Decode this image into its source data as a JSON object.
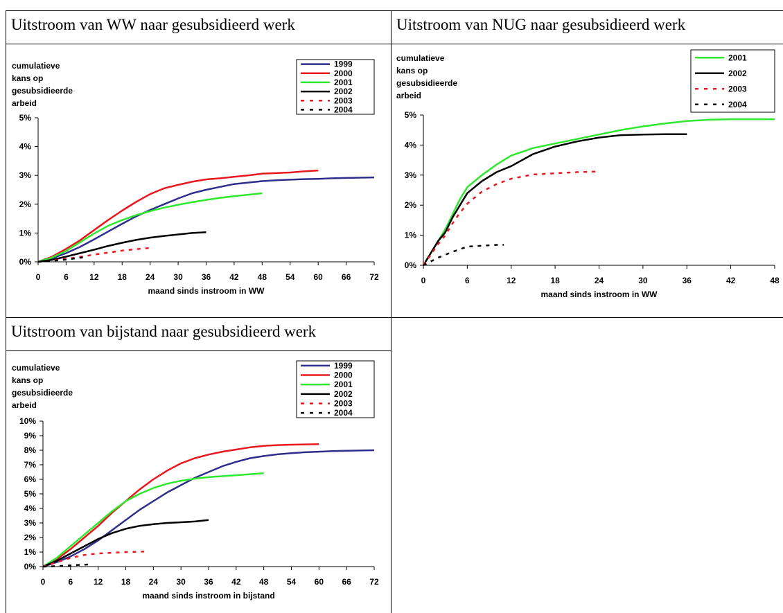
{
  "panels": [
    {
      "title": "Uitstroom van WW naar gesubsidieerd werk",
      "chart_data": {
        "type": "line",
        "ylabel_lines": [
          "cumulatieve",
          "kans op",
          "gesubsidieerde",
          "arbeid"
        ],
        "xlabel": "maand sinds instroom in WW",
        "xlim": [
          0,
          72
        ],
        "ylim": [
          0,
          5
        ],
        "xticks": [
          0,
          6,
          12,
          18,
          24,
          30,
          36,
          42,
          48,
          54,
          60,
          66,
          72
        ],
        "yticks": [
          0,
          1,
          2,
          3,
          4,
          5
        ],
        "ytick_labels": [
          "0%",
          "1%",
          "2%",
          "3%",
          "4%",
          "5%"
        ],
        "grid": false,
        "legend": "top-right",
        "series": [
          {
            "name": "1999",
            "color": "#2e2e8c",
            "dash": "solid",
            "x": [
              0,
              3,
              6,
              9,
              12,
              15,
              18,
              21,
              24,
              27,
              30,
              33,
              36,
              39,
              42,
              45,
              48,
              51,
              54,
              57,
              60,
              63,
              66,
              69,
              72
            ],
            "y": [
              0,
              0.12,
              0.3,
              0.52,
              0.78,
              1.05,
              1.32,
              1.58,
              1.8,
              2.0,
              2.2,
              2.38,
              2.5,
              2.6,
              2.7,
              2.75,
              2.8,
              2.83,
              2.85,
              2.87,
              2.88,
              2.9,
              2.91,
              2.92,
              2.93
            ]
          },
          {
            "name": "2000",
            "color": "#e8181e",
            "dash": "solid",
            "x": [
              0,
              3,
              6,
              9,
              12,
              15,
              18,
              21,
              24,
              27,
              30,
              33,
              36,
              39,
              42,
              45,
              48,
              51,
              54,
              57,
              60
            ],
            "y": [
              0,
              0.18,
              0.45,
              0.75,
              1.1,
              1.45,
              1.78,
              2.08,
              2.35,
              2.55,
              2.67,
              2.78,
              2.86,
              2.9,
              2.95,
              3.0,
              3.06,
              3.08,
              3.1,
              3.14,
              3.17
            ]
          },
          {
            "name": "2001",
            "color": "#2ee82e",
            "dash": "solid",
            "x": [
              0,
              3,
              6,
              9,
              12,
              15,
              18,
              21,
              24,
              27,
              30,
              33,
              36,
              39,
              42,
              45,
              48
            ],
            "y": [
              0,
              0.15,
              0.38,
              0.68,
              0.98,
              1.25,
              1.45,
              1.62,
              1.76,
              1.88,
              1.98,
              2.07,
              2.15,
              2.22,
              2.28,
              2.33,
              2.38
            ]
          },
          {
            "name": "2002",
            "color": "#000000",
            "dash": "solid",
            "x": [
              0,
              3,
              6,
              9,
              12,
              15,
              18,
              21,
              24,
              27,
              30,
              33,
              36
            ],
            "y": [
              0,
              0.07,
              0.18,
              0.3,
              0.42,
              0.55,
              0.66,
              0.76,
              0.84,
              0.9,
              0.95,
              1.0,
              1.03
            ]
          },
          {
            "name": "2003",
            "color": "#e8181e",
            "dash": "dashed",
            "x": [
              0,
              3,
              6,
              9,
              12,
              15,
              18,
              21,
              24
            ],
            "y": [
              0,
              0.04,
              0.1,
              0.17,
              0.25,
              0.32,
              0.39,
              0.44,
              0.48
            ]
          },
          {
            "name": "2004",
            "color": "#000000",
            "dash": "dashed",
            "x": [
              0,
              2,
              4,
              6,
              8,
              10
            ],
            "y": [
              0,
              0.02,
              0.05,
              0.08,
              0.12,
              0.16
            ]
          }
        ]
      }
    },
    {
      "title": "Uitstroom van NUG naar gesubsidieerd werk",
      "chart_data": {
        "type": "line",
        "ylabel_lines": [
          "cumulatieve",
          "kans op",
          "gesubsidieerde",
          "arbeid"
        ],
        "xlabel": "maand sinds instroom in WW",
        "xlim": [
          0,
          48
        ],
        "ylim": [
          0,
          5
        ],
        "xticks": [
          0,
          6,
          12,
          18,
          24,
          30,
          36,
          42,
          48
        ],
        "yticks": [
          0,
          1,
          2,
          3,
          4,
          5
        ],
        "ytick_labels": [
          "0%",
          "1%",
          "2%",
          "3%",
          "4%",
          "5%"
        ],
        "grid": false,
        "legend": "top-right",
        "series": [
          {
            "name": "2001",
            "color": "#2ee82e",
            "dash": "solid",
            "x": [
              0,
              1,
              2,
              3,
              4,
              5,
              6,
              8,
              10,
              12,
              15,
              18,
              21,
              24,
              27,
              30,
              33,
              36,
              39,
              42,
              45,
              48
            ],
            "y": [
              0,
              0.4,
              0.8,
              1.2,
              1.7,
              2.2,
              2.6,
              3.0,
              3.35,
              3.65,
              3.9,
              4.05,
              4.2,
              4.35,
              4.5,
              4.62,
              4.72,
              4.8,
              4.84,
              4.86,
              4.86,
              4.86
            ]
          },
          {
            "name": "2002",
            "color": "#000000",
            "dash": "solid",
            "x": [
              0,
              1,
              2,
              3,
              4,
              5,
              6,
              8,
              10,
              12,
              15,
              18,
              21,
              24,
              27,
              30,
              33,
              36
            ],
            "y": [
              0,
              0.4,
              0.8,
              1.1,
              1.6,
              2.0,
              2.4,
              2.8,
              3.1,
              3.3,
              3.7,
              3.95,
              4.12,
              4.25,
              4.33,
              4.35,
              4.36,
              4.36
            ]
          },
          {
            "name": "2003",
            "color": "#e8181e",
            "dash": "dashed",
            "x": [
              0,
              1,
              2,
              3,
              4,
              5,
              6,
              8,
              10,
              12,
              15,
              18,
              21,
              24
            ],
            "y": [
              0,
              0.35,
              0.7,
              1.0,
              1.4,
              1.75,
              2.05,
              2.45,
              2.7,
              2.88,
              3.02,
              3.06,
              3.1,
              3.12
            ]
          },
          {
            "name": "2004",
            "color": "#000000",
            "dash": "dashed",
            "x": [
              0,
              2,
              4,
              6,
              8,
              10,
              11
            ],
            "y": [
              0,
              0.25,
              0.45,
              0.62,
              0.65,
              0.68,
              0.68
            ]
          }
        ]
      }
    },
    {
      "title": "Uitstroom van bijstand naar gesubsidieerd werk",
      "chart_data": {
        "type": "line",
        "ylabel_lines": [
          "cumulatieve",
          "kans op",
          "gesubsidieerde",
          "arbeid"
        ],
        "xlabel": "maand sinds instroom in bijstand",
        "xlim": [
          0,
          72
        ],
        "ylim": [
          0,
          10
        ],
        "xticks": [
          0,
          6,
          12,
          18,
          24,
          30,
          36,
          42,
          48,
          54,
          60,
          66,
          72
        ],
        "yticks": [
          0,
          1,
          2,
          3,
          4,
          5,
          6,
          7,
          8,
          9,
          10
        ],
        "ytick_labels": [
          "0%",
          "1%",
          "2%",
          "3%",
          "4%",
          "5%",
          "6%",
          "7%",
          "8%",
          "9%",
          "10%"
        ],
        "grid": false,
        "legend": "top-right",
        "series": [
          {
            "name": "1999",
            "color": "#2e2e8c",
            "dash": "solid",
            "x": [
              0,
              3,
              6,
              9,
              12,
              15,
              18,
              21,
              24,
              27,
              30,
              33,
              36,
              39,
              42,
              45,
              48,
              51,
              54,
              57,
              60,
              63,
              66,
              69,
              72
            ],
            "y": [
              0,
              0.3,
              0.7,
              1.2,
              1.8,
              2.5,
              3.2,
              3.9,
              4.5,
              5.1,
              5.6,
              6.1,
              6.5,
              6.9,
              7.2,
              7.45,
              7.6,
              7.72,
              7.8,
              7.86,
              7.9,
              7.94,
              7.96,
              7.98,
              8.0
            ]
          },
          {
            "name": "2000",
            "color": "#e8181e",
            "dash": "solid",
            "x": [
              0,
              3,
              6,
              9,
              12,
              15,
              18,
              21,
              24,
              27,
              30,
              33,
              36,
              39,
              42,
              45,
              48,
              51,
              54,
              57,
              60
            ],
            "y": [
              0,
              0.5,
              1.2,
              2.0,
              2.8,
              3.7,
              4.5,
              5.3,
              6.0,
              6.6,
              7.1,
              7.45,
              7.7,
              7.9,
              8.05,
              8.2,
              8.3,
              8.35,
              8.38,
              8.4,
              8.42
            ]
          },
          {
            "name": "2001",
            "color": "#2ee82e",
            "dash": "solid",
            "x": [
              0,
              3,
              6,
              9,
              12,
              15,
              18,
              21,
              24,
              27,
              30,
              33,
              36,
              39,
              42,
              45,
              48
            ],
            "y": [
              0,
              0.6,
              1.4,
              2.2,
              3.0,
              3.8,
              4.5,
              5.0,
              5.4,
              5.7,
              5.9,
              6.05,
              6.15,
              6.22,
              6.28,
              6.35,
              6.42
            ]
          },
          {
            "name": "2002",
            "color": "#000000",
            "dash": "solid",
            "x": [
              0,
              3,
              6,
              9,
              12,
              15,
              18,
              21,
              24,
              27,
              30,
              33,
              36
            ],
            "y": [
              0,
              0.4,
              0.9,
              1.4,
              1.9,
              2.3,
              2.6,
              2.8,
              2.92,
              3.0,
              3.05,
              3.1,
              3.2
            ]
          },
          {
            "name": "2003",
            "color": "#e8181e",
            "dash": "dashed",
            "x": [
              0,
              3,
              6,
              9,
              12,
              15,
              18,
              21,
              22
            ],
            "y": [
              0,
              0.3,
              0.6,
              0.8,
              0.9,
              0.95,
              1.0,
              1.02,
              1.04
            ]
          },
          {
            "name": "2004",
            "color": "#000000",
            "dash": "dashed",
            "x": [
              0,
              2,
              4,
              6,
              8,
              10
            ],
            "y": [
              0,
              0.02,
              0.05,
              0.08,
              0.12,
              0.15
            ]
          }
        ]
      }
    }
  ]
}
